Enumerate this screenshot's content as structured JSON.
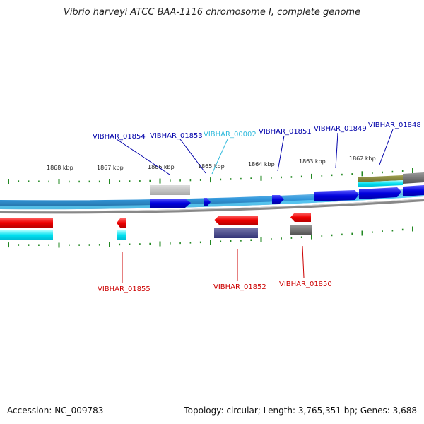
{
  "header": {
    "title": "Vibrio harveyi ATCC BAA-1116 chromosome I, complete genome"
  },
  "footer": {
    "accession": "Accession: NC_009783",
    "summary": "Topology: circular; Length: 3,765,351 bp; Genes: 3,688"
  },
  "ruler": {
    "labels": [
      "1868 kbp",
      "1867 kbp",
      "1866 kbp",
      "1865 kbp",
      "1864 kbp",
      "1863 kbp",
      "1862 kbp"
    ]
  },
  "colors": {
    "forward_gene": "#0000cc",
    "reverse_gene": "#cc0000",
    "ncrna": "#33bbcc",
    "backbone": "#33aadd",
    "tick": "#228822"
  },
  "genes": {
    "top": [
      {
        "id": "VIBHAR_01854",
        "color": "#0000aa"
      },
      {
        "id": "VIBHAR_01853",
        "color": "#0000aa"
      },
      {
        "id": "VIBHAR_00002",
        "color": "#33bbdd"
      },
      {
        "id": "VIBHAR_01851",
        "color": "#0000aa"
      },
      {
        "id": "VIBHAR_01849",
        "color": "#0000aa"
      },
      {
        "id": "VIBHAR_01848",
        "color": "#0000aa"
      }
    ],
    "bottom": [
      {
        "id": "VIBHAR_01855",
        "color": "#cc0000"
      },
      {
        "id": "VIBHAR_01852",
        "color": "#cc0000"
      },
      {
        "id": "VIBHAR_01850",
        "color": "#cc0000"
      }
    ]
  }
}
